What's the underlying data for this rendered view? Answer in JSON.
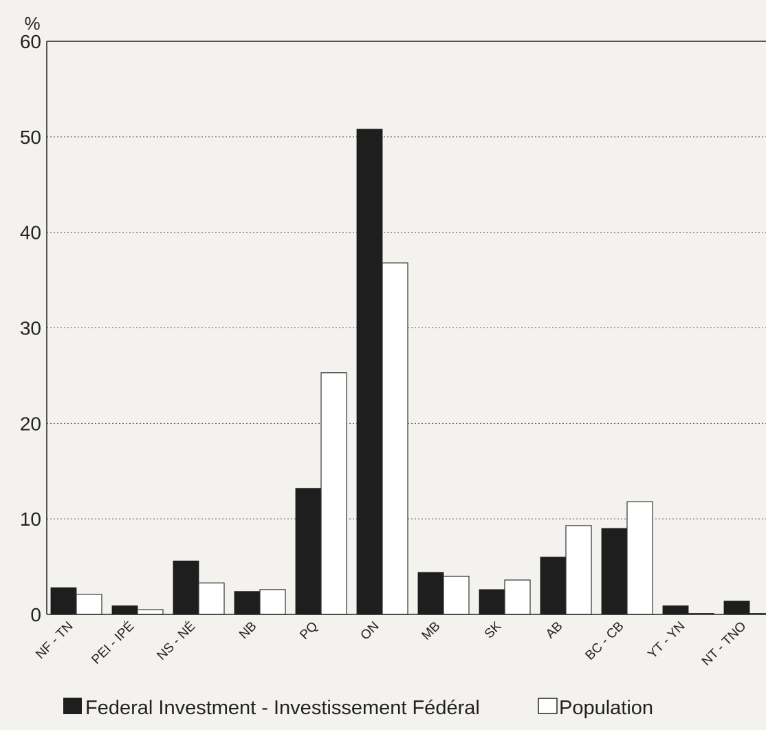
{
  "chart_data": {
    "type": "bar",
    "ylabel": "%",
    "ylim": [
      0,
      60
    ],
    "yticks": [
      0,
      10,
      20,
      30,
      40,
      50,
      60
    ],
    "grid": "horizontal-dotted",
    "legend_position": "bottom",
    "categories": [
      "NF - TN",
      "PEI - IPÉ",
      "NS - NÉ",
      "NB",
      "PQ",
      "ON",
      "MB",
      "SK",
      "AB",
      "BC - CB",
      "YT - YN",
      "NT - TNO"
    ],
    "series": [
      {
        "name": "Federal Investment - Investissement Fédéral",
        "color": "#1e1e1e",
        "values": [
          2.8,
          0.9,
          5.6,
          2.4,
          13.2,
          50.8,
          4.4,
          2.6,
          6.0,
          9.0,
          0.9,
          1.4
        ]
      },
      {
        "name": "Population",
        "color": "#ffffff",
        "values": [
          2.1,
          0.5,
          3.3,
          2.6,
          25.3,
          36.8,
          4.0,
          3.6,
          9.3,
          11.8,
          0.1,
          0.1
        ]
      }
    ]
  }
}
